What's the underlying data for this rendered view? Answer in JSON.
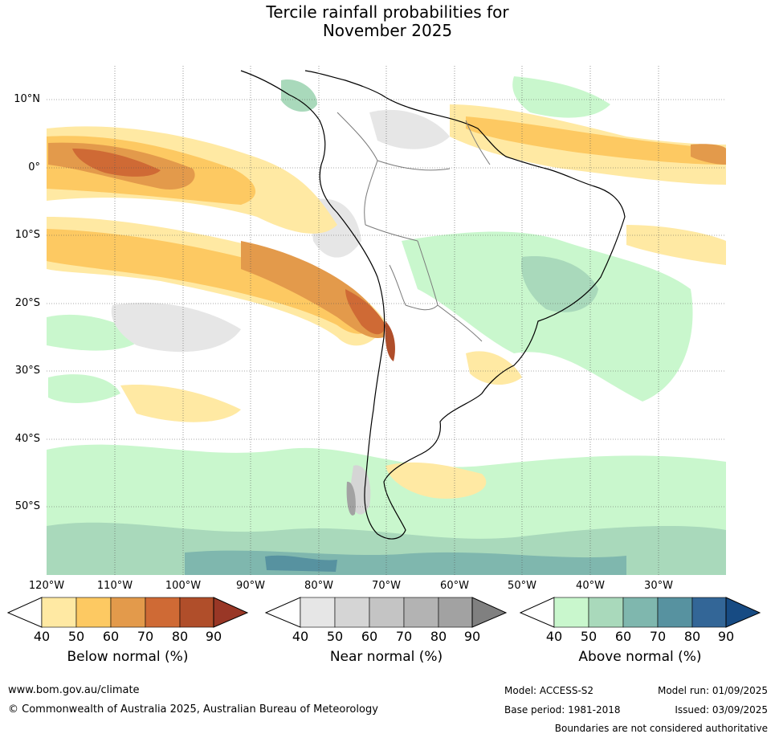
{
  "title": {
    "line1": "Tercile rainfall probabilities for",
    "line2": "November 2025"
  },
  "axes": {
    "lat_labels": [
      "10°N",
      "0°",
      "10°S",
      "20°S",
      "30°S",
      "40°S",
      "50°S"
    ],
    "lon_labels": [
      "120°W",
      "110°W",
      "100°W",
      "90°W",
      "80°W",
      "70°W",
      "60°W",
      "50°W",
      "40°W",
      "30°W"
    ]
  },
  "legends": [
    {
      "title": "Below normal (%)",
      "ticks": [
        "40",
        "50",
        "60",
        "70",
        "80",
        "90"
      ],
      "colors": [
        "#ffffff",
        "#ffe9a3",
        "#fdc962",
        "#e39a4b",
        "#cf6a35",
        "#b04e2a",
        "#993726"
      ]
    },
    {
      "title": "Near normal (%)",
      "ticks": [
        "40",
        "50",
        "60",
        "70",
        "80",
        "90"
      ],
      "colors": [
        "#ffffff",
        "#e6e6e6",
        "#d5d5d5",
        "#c4c4c4",
        "#b3b3b3",
        "#a2a2a2",
        "#808080"
      ]
    },
    {
      "title": "Above normal (%)",
      "ticks": [
        "40",
        "50",
        "60",
        "70",
        "80",
        "90"
      ],
      "colors": [
        "#ffffff",
        "#c9f7cd",
        "#a9d9bb",
        "#7fb7ae",
        "#5792a0",
        "#336697",
        "#174b83"
      ]
    }
  ],
  "footer": {
    "website": "www.bom.gov.au/climate",
    "copyright": "© Commonwealth of Australia 2025, Australian Bureau of Meteorology",
    "model": "Model: ACCESS-S2",
    "model_run": "Model run: 01/09/2025",
    "base_period": "Base period: 1981-2018",
    "issued": "Issued: 03/09/2025",
    "disclaimer": "Boundaries are not considered authoritative"
  }
}
